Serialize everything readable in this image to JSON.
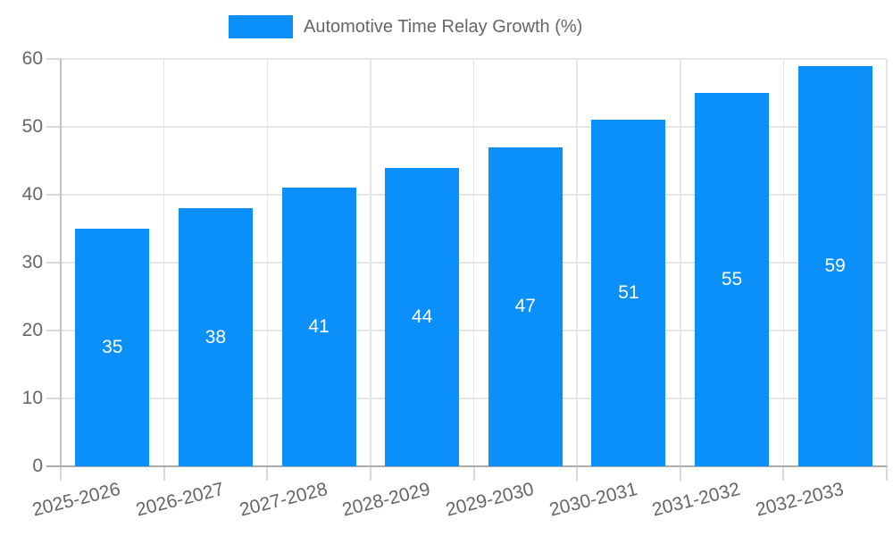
{
  "legend": {
    "label": "Automotive Time Relay Growth (%)"
  },
  "chart_data": {
    "type": "bar",
    "title": "Automotive Time Relay Growth (%)",
    "categories": [
      "2025-2026",
      "2026-2027",
      "2027-2028",
      "2028-2029",
      "2029-2030",
      "2030-2031",
      "2031-2032",
      "2032-2033"
    ],
    "values": [
      35,
      38,
      41,
      44,
      47,
      51,
      55,
      59
    ],
    "xlabel": "",
    "ylabel": "",
    "ylim": [
      0,
      60
    ],
    "yticks": [
      0,
      10,
      20,
      30,
      40,
      50,
      60
    ],
    "grid": true,
    "legend_position": "top",
    "value_label_position": "center-of-bar",
    "x_tick_rotation_deg": -14,
    "colors": {
      "bar": "#0b8ff9",
      "grid": "#e6e6e6",
      "tick": "#d9d9d9",
      "y_axis_line": "#c3c3c3",
      "x_axis_line": "#aaacae",
      "axis_text": "#666666",
      "value_label": "#ffffff",
      "background": "#ffffff"
    }
  }
}
